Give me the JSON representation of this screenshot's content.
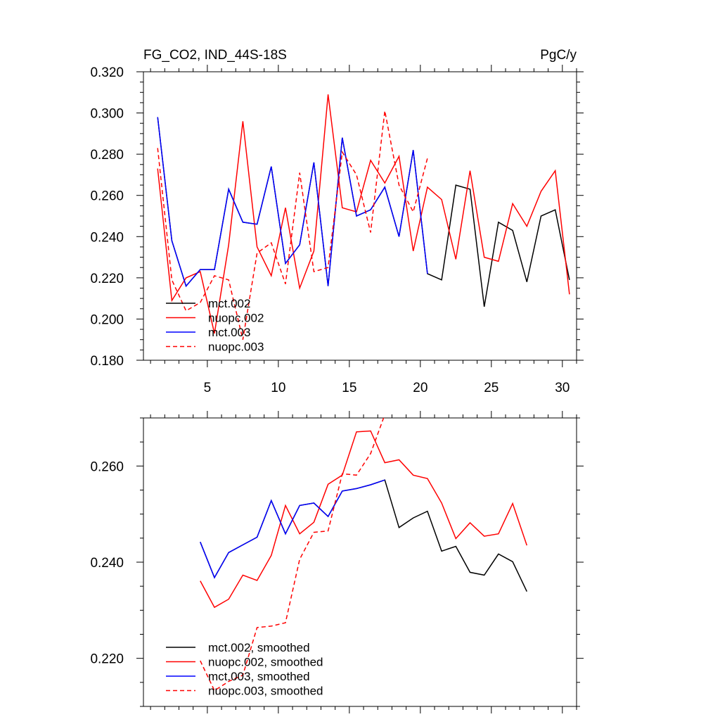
{
  "chart_data": [
    {
      "type": "line",
      "title_left": "FG_CO2, IND_44S-18S",
      "title_right": "PgC/y",
      "xlabel": "",
      "ylabel": "",
      "xlim": [
        0.5,
        31
      ],
      "ylim": [
        0.18,
        0.32
      ],
      "xticks": [
        5,
        10,
        15,
        20,
        25,
        30
      ],
      "yticks": [
        0.18,
        0.2,
        0.22,
        0.24,
        0.26,
        0.28,
        0.3,
        0.32
      ],
      "xtick_labels": [
        "5",
        "10",
        "15",
        "20",
        "25",
        "30"
      ],
      "ytick_labels": [
        "0.180",
        "0.200",
        "0.220",
        "0.240",
        "0.260",
        "0.280",
        "0.300",
        "0.320"
      ],
      "legend_position": "lower-left",
      "series": [
        {
          "name": "mct.002",
          "color": "#000000",
          "dash": "solid",
          "x": [
            1.5,
            2.5,
            3.5,
            4.5,
            5.5,
            6.5,
            7.5,
            8.5,
            9.5,
            10.5,
            11.5,
            12.5,
            13.5,
            14.5,
            15.5,
            16.5,
            17.5,
            18.5,
            19.5,
            20.5,
            21.5,
            22.5,
            23.5,
            24.5,
            25.5,
            26.5,
            27.5,
            28.5,
            29.5,
            30.5
          ],
          "y": [
            0.298,
            0.238,
            0.216,
            0.224,
            0.224,
            0.263,
            0.247,
            0.246,
            0.274,
            0.227,
            0.236,
            0.276,
            0.216,
            0.288,
            0.25,
            0.253,
            0.264,
            0.24,
            0.282,
            0.222,
            0.219,
            0.265,
            0.263,
            0.206,
            0.247,
            0.243,
            0.218,
            0.25,
            0.253,
            0.219
          ]
        },
        {
          "name": "nuopc.002",
          "color": "#ff0000",
          "dash": "solid",
          "x": [
            1.5,
            2.5,
            3.5,
            4.5,
            5.5,
            6.5,
            7.5,
            8.5,
            9.5,
            10.5,
            11.5,
            12.5,
            13.5,
            14.5,
            15.5,
            16.5,
            17.5,
            18.5,
            19.5,
            20.5,
            21.5,
            22.5,
            23.5,
            24.5,
            25.5,
            26.5,
            27.5,
            28.5,
            29.5,
            30.5
          ],
          "y": [
            0.273,
            0.209,
            0.22,
            0.223,
            0.193,
            0.236,
            0.296,
            0.235,
            0.221,
            0.254,
            0.215,
            0.233,
            0.309,
            0.254,
            0.252,
            0.277,
            0.266,
            0.279,
            0.233,
            0.264,
            0.258,
            0.229,
            0.272,
            0.23,
            0.228,
            0.256,
            0.245,
            0.262,
            0.272,
            0.212
          ]
        },
        {
          "name": "mct.003",
          "color": "#0000ff",
          "dash": "solid",
          "x": [
            1.5,
            2.5,
            3.5,
            4.5,
            5.5,
            6.5,
            7.5,
            8.5,
            9.5,
            10.5,
            11.5,
            12.5,
            13.5,
            14.5,
            15.5,
            16.5,
            17.5,
            18.5,
            19.5,
            20.5
          ],
          "y": [
            0.298,
            0.238,
            0.216,
            0.224,
            0.224,
            0.263,
            0.247,
            0.246,
            0.274,
            0.227,
            0.236,
            0.276,
            0.216,
            0.288,
            0.25,
            0.253,
            0.264,
            0.24,
            0.282,
            0.222
          ]
        },
        {
          "name": "nuopc.003",
          "color": "#ff0000",
          "dash": "dashed",
          "x": [
            1.5,
            2.5,
            3.5,
            4.5,
            5.5,
            6.5,
            7.5,
            8.5,
            9.5,
            10.5,
            11.5,
            12.5,
            13.5,
            14.5,
            15.5,
            16.5,
            17.5,
            18.5,
            19.5,
            20.5
          ],
          "y": [
            0.283,
            0.219,
            0.204,
            0.208,
            0.221,
            0.219,
            0.19,
            0.232,
            0.237,
            0.217,
            0.271,
            0.223,
            0.225,
            0.281,
            0.27,
            0.242,
            0.301,
            0.265,
            0.252,
            0.278
          ]
        }
      ]
    },
    {
      "type": "line",
      "title_left": "",
      "title_right": "",
      "xlabel": "",
      "ylabel": "",
      "xlim": [
        0.5,
        31
      ],
      "ylim": [
        0.21,
        0.27
      ],
      "xticks": [
        5,
        10,
        15,
        20,
        25,
        30
      ],
      "yticks": [
        0.22,
        0.24,
        0.26
      ],
      "xtick_labels": [],
      "ytick_labels": [
        "0.220",
        "0.240",
        "0.260"
      ],
      "legend_position": "lower-left",
      "series": [
        {
          "name": "mct.002, smoothed",
          "color": "#000000",
          "dash": "solid",
          "x": [
            4.5,
            5.5,
            6.5,
            7.5,
            8.5,
            9.5,
            10.5,
            11.5,
            12.5,
            13.5,
            14.5,
            15.5,
            16.5,
            17.5,
            18.5,
            19.5,
            20.5,
            21.5,
            22.5,
            23.5,
            24.5,
            25.5,
            26.5,
            27.5
          ],
          "y": [
            0.2442,
            0.2368,
            0.242,
            0.2436,
            0.2452,
            0.2528,
            0.2459,
            0.2518,
            0.2523,
            0.2495,
            0.2548,
            0.2553,
            0.2561,
            0.2571,
            0.2472,
            0.2492,
            0.2506,
            0.2423,
            0.2433,
            0.2379,
            0.2373,
            0.2417,
            0.2401,
            0.2339
          ]
        },
        {
          "name": "nuopc.002, smoothed",
          "color": "#ff0000",
          "dash": "solid",
          "x": [
            4.5,
            5.5,
            6.5,
            7.5,
            8.5,
            9.5,
            10.5,
            11.5,
            12.5,
            13.5,
            14.5,
            15.5,
            16.5,
            17.5,
            18.5,
            19.5,
            20.5,
            21.5,
            22.5,
            23.5,
            24.5,
            25.5,
            26.5,
            27.5
          ],
          "y": [
            0.2361,
            0.2306,
            0.2323,
            0.2373,
            0.2362,
            0.2414,
            0.2518,
            0.2459,
            0.2483,
            0.2562,
            0.2581,
            0.2671,
            0.2673,
            0.2607,
            0.2613,
            0.2581,
            0.2574,
            0.2523,
            0.2449,
            0.2482,
            0.2454,
            0.2459,
            0.2522,
            0.2435
          ]
        },
        {
          "name": "mct.003, smoothed",
          "color": "#0000ff",
          "dash": "solid",
          "x": [
            4.5,
            5.5,
            6.5,
            7.5,
            8.5,
            9.5,
            10.5,
            11.5,
            12.5,
            13.5,
            14.5,
            15.5,
            16.5,
            17.5
          ],
          "y": [
            0.2442,
            0.2368,
            0.242,
            0.2436,
            0.2452,
            0.2528,
            0.2459,
            0.2518,
            0.2523,
            0.2495,
            0.2548,
            0.2553,
            0.2561,
            0.2571
          ]
        },
        {
          "name": "nuopc.003, smoothed",
          "color": "#ff0000",
          "dash": "dashed",
          "x": [
            4.5,
            5.5,
            6.5,
            7.5,
            8.5,
            9.5,
            10.5,
            11.5,
            12.5,
            13.5,
            14.5,
            15.5,
            16.5,
            17.5
          ],
          "y": [
            0.2195,
            0.2133,
            0.2152,
            0.2165,
            0.2264,
            0.2267,
            0.2274,
            0.2406,
            0.2462,
            0.2465,
            0.2584,
            0.2581,
            0.2626,
            0.2707
          ]
        }
      ]
    }
  ]
}
